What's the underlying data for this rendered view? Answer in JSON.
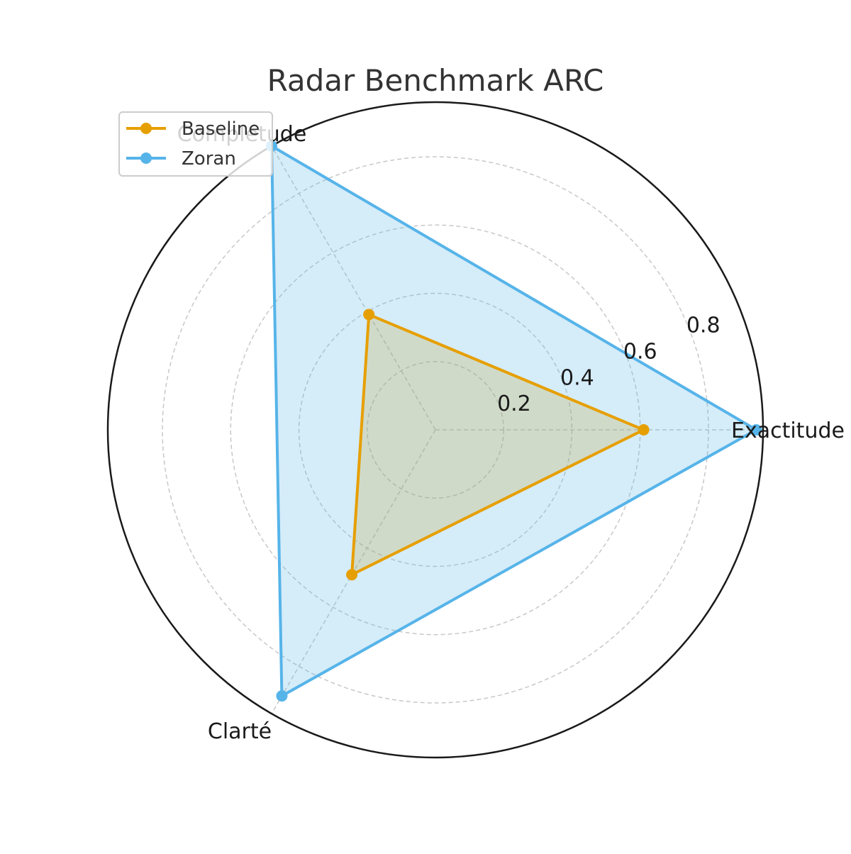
{
  "chart_data": {
    "type": "radar",
    "title": "Radar Benchmark ARC",
    "categories": [
      "Exactitude",
      "Complétude",
      "Clarté"
    ],
    "radial_ticks": [
      "0.2",
      "0.4",
      "0.6",
      "0.8"
    ],
    "radial_tick_values": [
      0.2,
      0.4,
      0.6,
      0.8
    ],
    "rlim": [
      0,
      0.96
    ],
    "grid": true,
    "legend_position": "top-left",
    "series": [
      {
        "name": "Baseline",
        "values": [
          0.61,
          0.39,
          0.49
        ],
        "color": "#E69F00"
      },
      {
        "name": "Zoran",
        "values": [
          0.94,
          0.96,
          0.9
        ],
        "color": "#56B4E9"
      }
    ]
  }
}
